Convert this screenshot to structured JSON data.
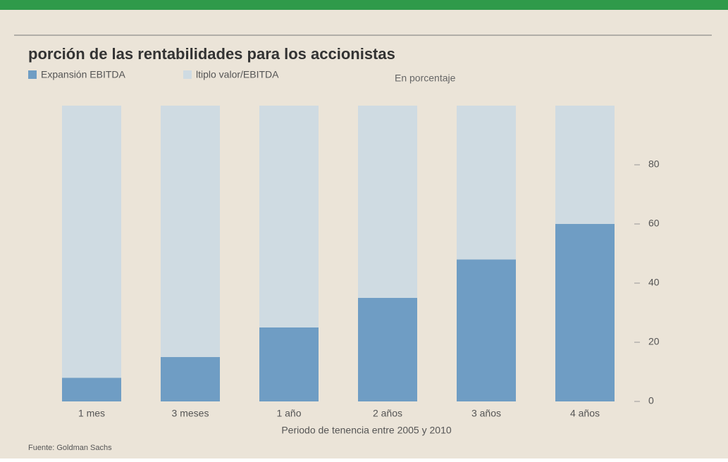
{
  "chart_data": {
    "type": "stacked-bar",
    "title": "porción de las rentabilidades para los accionistas",
    "subtitle": "En porcentaje",
    "x_label": "Periodo de tenencia entre 2005 y 2010",
    "source": "Fuente: Goldman Sachs",
    "categories": [
      "1 mes",
      "3 meses",
      "1 año",
      "2 años",
      "3 años",
      "4 años"
    ],
    "series": [
      {
        "name": "Expansión EBITDA",
        "color": "#6f9dc4",
        "values": [
          8,
          15,
          25,
          35,
          48,
          60
        ]
      },
      {
        "name": "ltiplo valor/EBITDA",
        "color": "#cfdbe2",
        "values": [
          92,
          85,
          75,
          65,
          52,
          40
        ]
      }
    ],
    "ylim": [
      0,
      100
    ],
    "yticks": [
      0,
      20,
      40,
      60,
      80
    ],
    "axis_side": "right"
  }
}
